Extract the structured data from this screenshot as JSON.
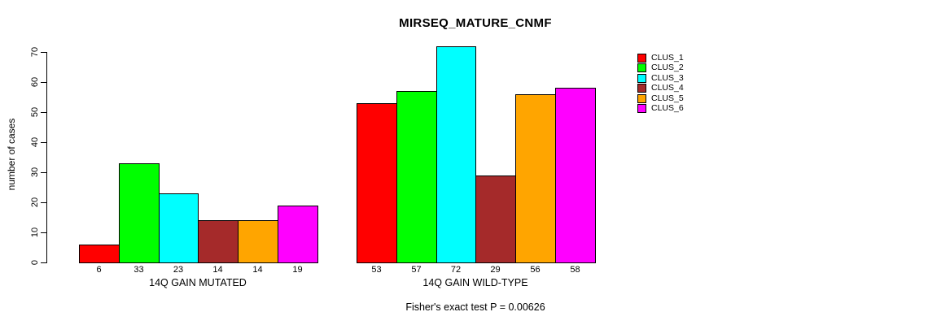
{
  "title": "MIRSEQ_MATURE_CNMF",
  "chart_data": {
    "type": "bar",
    "title": "MIRSEQ_MATURE_CNMF",
    "xlabel": "",
    "ylabel": "number of cases",
    "ylim": [
      0,
      70
    ],
    "yticks": [
      0,
      10,
      20,
      30,
      40,
      50,
      60,
      70
    ],
    "grid": false,
    "legend_position": "right",
    "categories": [
      "14Q GAIN MUTATED",
      "14Q GAIN WILD-TYPE"
    ],
    "series": [
      {
        "name": "CLUS_1",
        "color": "#FF0000",
        "values": [
          6,
          53
        ]
      },
      {
        "name": "CLUS_2",
        "color": "#00FF00",
        "values": [
          33,
          57
        ]
      },
      {
        "name": "CLUS_3",
        "color": "#00FFFF",
        "values": [
          23,
          72
        ]
      },
      {
        "name": "CLUS_4",
        "color": "#A52A2A",
        "values": [
          14,
          29
        ]
      },
      {
        "name": "CLUS_5",
        "color": "#FFA500",
        "values": [
          14,
          56
        ]
      },
      {
        "name": "CLUS_6",
        "color": "#FF00FF",
        "values": [
          19,
          58
        ]
      }
    ],
    "annotation": "Fisher's exact test P = 0.00626"
  }
}
